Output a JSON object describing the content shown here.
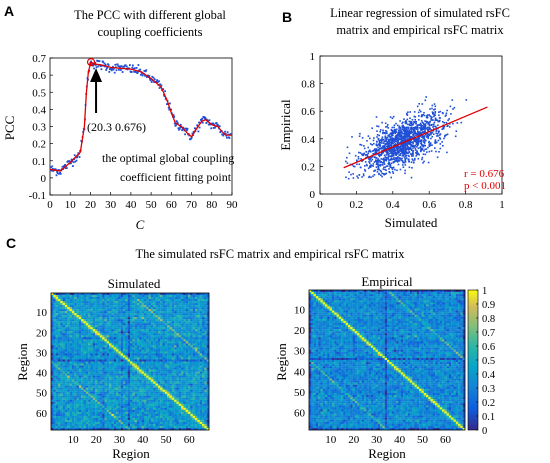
{
  "panels": {
    "a_letter": "A",
    "b_letter": "B",
    "c_letter": "C",
    "c_title": "The simulated rsFC matrix and empirical rsFC matrix"
  },
  "chart_data": [
    {
      "type": "scatter",
      "title_line1": "The PCC with different global",
      "title_line2": "coupling coefficients",
      "xlabel": "C",
      "ylabel": "PCC",
      "xlim": [
        0,
        90
      ],
      "ylim": [
        -0.1,
        0.7
      ],
      "xticks": [
        "0",
        "10",
        "20",
        "30",
        "40",
        "50",
        "60",
        "70",
        "80",
        "90"
      ],
      "yticks": [
        "-0.1",
        "0",
        "0.1",
        "0.2",
        "0.3",
        "0.4",
        "0.5",
        "0.6",
        "0.7"
      ],
      "grid": false,
      "point_color": "#1f4fd6",
      "fit_color": "#e00000",
      "fit_curve_x": [
        0,
        5,
        10,
        15,
        17,
        18,
        19,
        20,
        20.3,
        22,
        25,
        30,
        35,
        40,
        45,
        50,
        55,
        58,
        60,
        62,
        65,
        68,
        70,
        72,
        75,
        77,
        80,
        83,
        85,
        87,
        90
      ],
      "fit_curve_y": [
        0.05,
        0.04,
        0.09,
        0.15,
        0.3,
        0.5,
        0.62,
        0.665,
        0.676,
        0.665,
        0.66,
        0.645,
        0.64,
        0.635,
        0.62,
        0.58,
        0.53,
        0.45,
        0.38,
        0.32,
        0.3,
        0.26,
        0.24,
        0.28,
        0.33,
        0.34,
        0.31,
        0.3,
        0.27,
        0.25,
        0.25
      ],
      "optimal_point": {
        "x": 20.3,
        "y": 0.676
      },
      "optimal_label": "(20.3  0.676)",
      "annotation_line1": "the optimal global coupling",
      "annotation_line2": "coefficient fitting point"
    },
    {
      "type": "scatter",
      "title_line1": "Linear regression of simulated rsFC",
      "title_line2": "matrix and empirical rsFC matrix",
      "xlabel": "Simulated",
      "ylabel": "Empirical",
      "xlim": [
        0,
        1
      ],
      "ylim": [
        0,
        1
      ],
      "xticks": [
        "0",
        "0.2",
        "0.4",
        "0.6",
        "0.8",
        "1"
      ],
      "yticks": [
        "0",
        "0.2",
        "0.4",
        "0.6",
        "0.8",
        "1"
      ],
      "grid": false,
      "point_color": "#1f4fd6",
      "fit_color": "#e00000",
      "regression_line": {
        "x": [
          0.13,
          0.92
        ],
        "y": [
          0.19,
          0.63
        ]
      },
      "r_label": "r = 0.676",
      "p_label": "p < 0.001"
    },
    {
      "type": "heatmap",
      "title": "Simulated",
      "xlabel": "Region",
      "ylabel": "Region",
      "size": 68,
      "xticks": [
        "10",
        "20",
        "30",
        "40",
        "50",
        "60"
      ],
      "yticks": [
        "10",
        "20",
        "30",
        "40",
        "50",
        "60"
      ],
      "colormap": "parula",
      "range": [
        0,
        1
      ]
    },
    {
      "type": "heatmap",
      "title": "Empirical",
      "xlabel": "Region",
      "ylabel": "Region",
      "size": 68,
      "xticks": [
        "10",
        "20",
        "30",
        "40",
        "50",
        "60"
      ],
      "yticks": [
        "10",
        "20",
        "30",
        "40",
        "50",
        "60"
      ],
      "colormap": "parula",
      "range": [
        0,
        1
      ],
      "colorbar_ticks": [
        "1",
        "0.9",
        "0.8",
        "0.7",
        "0.6",
        "0.5",
        "0.4",
        "0.3",
        "0.2",
        "0.1",
        "0"
      ]
    }
  ]
}
